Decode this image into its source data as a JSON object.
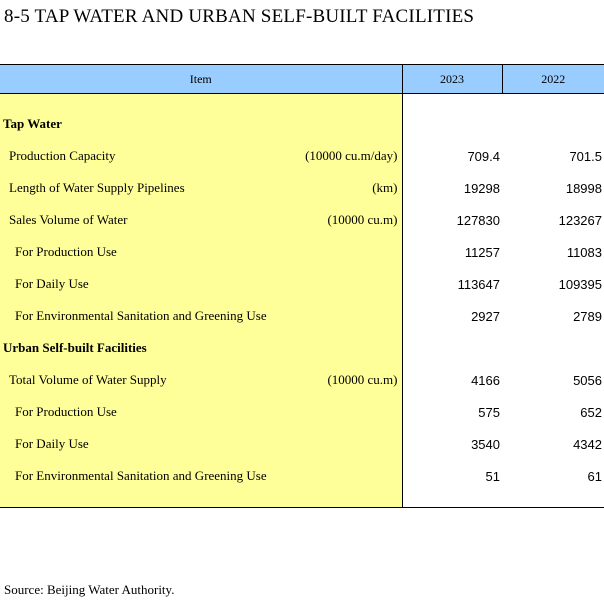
{
  "title": "8-5  TAP WATER AND URBAN SELF-BUILT FACILITIES",
  "header": {
    "item": "Item",
    "year_a": "2023",
    "year_b": "2022"
  },
  "rows": [
    {
      "label": "Tap Water",
      "unit": "",
      "v2023": "",
      "v2022": ""
    },
    {
      "label": "Production Capacity",
      "unit": "(10000 cu.m/day)",
      "v2023": "709.4",
      "v2022": "701.5"
    },
    {
      "label": "Length of Water Supply Pipelines",
      "unit": "(km)",
      "v2023": "19298",
      "v2022": "18998"
    },
    {
      "label": "Sales Volume of Water",
      "unit": "(10000 cu.m)",
      "v2023": "127830",
      "v2022": "123267"
    },
    {
      "label": "For Production Use",
      "unit": "",
      "v2023": "11257",
      "v2022": "11083"
    },
    {
      "label": "For Daily Use",
      "unit": "",
      "v2023": "113647",
      "v2022": "109395"
    },
    {
      "label": "For Environmental Sanitation and Greening Use",
      "unit": "",
      "v2023": "2927",
      "v2022": "2789"
    },
    {
      "label": "Urban Self-built Facilities",
      "unit": "",
      "v2023": "",
      "v2022": ""
    },
    {
      "label": "Total Volume of Water Supply",
      "unit": "(10000 cu.m)",
      "v2023": "4166",
      "v2022": "5056"
    },
    {
      "label": "For Production Use",
      "unit": "",
      "v2023": "575",
      "v2022": "652"
    },
    {
      "label": "For Daily Use",
      "unit": "",
      "v2023": "3540",
      "v2022": "4342"
    },
    {
      "label": "For Environmental Sanitation and Greening Use",
      "unit": "",
      "v2023": "51",
      "v2022": "61"
    }
  ],
  "source": "Source: Beijing Water Authority.",
  "colors": {
    "header_bg": "#99ccff",
    "item_bg": "#ffff99"
  }
}
